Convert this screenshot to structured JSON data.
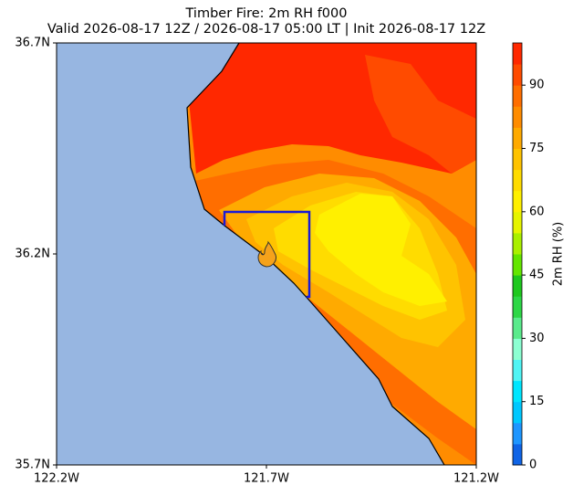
{
  "map": {
    "title": "Timber Fire: 2m RH f000",
    "subtitle": "Valid 2026-08-17 12Z / 2026-08-17 05:00 LT | Init 2026-08-17 12Z",
    "latlim": [
      35.7,
      36.7
    ],
    "lonlim": [
      -122.2,
      -121.2
    ],
    "lat_ticks": [
      {
        "value": 36.7,
        "label": "36.7N"
      },
      {
        "value": 36.2,
        "label": "36.2N"
      },
      {
        "value": 35.7,
        "label": "35.7N"
      }
    ],
    "lon_ticks": [
      {
        "value": -122.2,
        "label": "122.2W"
      },
      {
        "value": -121.7,
        "label": "121.7W"
      },
      {
        "value": -121.2,
        "label": "121.2W"
      }
    ],
    "colorbar": {
      "label": "2m RH (%)",
      "lim": [
        0,
        100
      ],
      "ticks": [
        0,
        15,
        30,
        45,
        60,
        75,
        90
      ],
      "colors": [
        "#0f64e6",
        "#1e96ff",
        "#00c8ff",
        "#00e6ff",
        "#50f5f5",
        "#8cffd2",
        "#5aeb8c",
        "#2dd746",
        "#1ec81e",
        "#64e600",
        "#aaf000",
        "#e6f500",
        "#fff000",
        "#ffdc00",
        "#ffc300",
        "#ffaa00",
        "#ff8c00",
        "#ff6e00",
        "#ff4b00",
        "#ff2800"
      ]
    }
  }
}
